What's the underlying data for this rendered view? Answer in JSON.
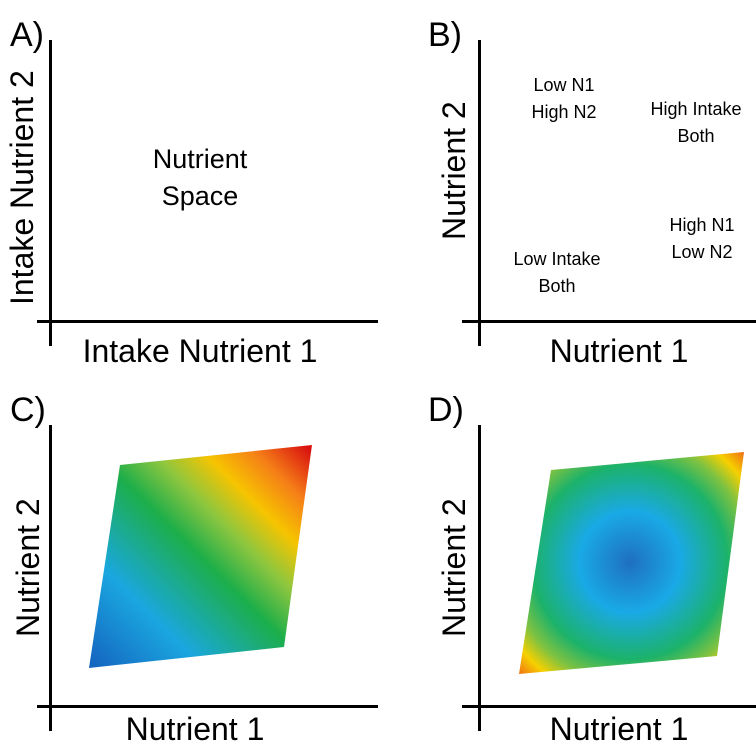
{
  "panels": {
    "a": {
      "letter": "A)",
      "xlabel": "Intake Nutrient 1",
      "ylabel": "Intake Nutrient 2",
      "center_line1": "Nutrient",
      "center_line2": "Space"
    },
    "b": {
      "letter": "B)",
      "xlabel": "Nutrient 1",
      "ylabel": "Nutrient 2",
      "regions": {
        "top_left": {
          "line1": "Low N1",
          "line2": "High N2"
        },
        "top_right": {
          "line1": "High Intake",
          "line2": "Both"
        },
        "bottom_right": {
          "line1": "High N1",
          "line2": "Low N2"
        },
        "bottom_left": {
          "line1": "Low Intake",
          "line2": "Both"
        }
      }
    },
    "c": {
      "letter": "C)",
      "xlabel": "Nutrient 1",
      "ylabel": "Nutrient 2",
      "fill": "linear diagonal gradient",
      "colors": [
        "#1566c0",
        "#1aa7e0",
        "#1cae4a",
        "#8dc63f",
        "#f6c400",
        "#f57f17",
        "#d9120f"
      ]
    },
    "d": {
      "letter": "D)",
      "xlabel": "Nutrient 1",
      "ylabel": "Nutrient 2",
      "fill": "radial gradient",
      "colors": [
        "#1f6fbf",
        "#19a9e6",
        "#1cb26a",
        "#7fc241",
        "#f6d000",
        "#f07a12",
        "#d8150d"
      ]
    }
  }
}
